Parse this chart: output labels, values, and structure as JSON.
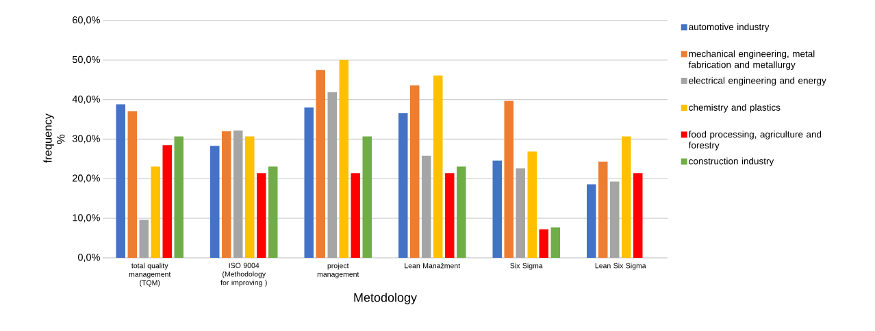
{
  "chart_data": {
    "type": "bar",
    "xlabel": "Metodology",
    "ylabel": "frequency %",
    "categories": [
      "total quality management (TQM)",
      "ISO 9004 (Methodology for improving )",
      "project management",
      "Lean Manažment",
      "Six Sigma",
      "Lean Six Sigma"
    ],
    "series": [
      {
        "name": "automotive industry",
        "color": "#4472c4",
        "values": [
          38.8,
          28.3,
          38.0,
          36.6,
          24.6,
          18.6
        ]
      },
      {
        "name": "mechanical engineering, metal fabrication and metallurgy",
        "color": "#ed7d31",
        "values": [
          37.1,
          32.0,
          47.5,
          43.6,
          39.7,
          24.3
        ]
      },
      {
        "name": "electrical engineering and energy",
        "color": "#a5a5a5",
        "values": [
          9.6,
          32.2,
          41.9,
          25.8,
          22.6,
          19.3
        ]
      },
      {
        "name": "chemistry and plastics",
        "color": "#ffc000",
        "values": [
          23.1,
          30.7,
          50.0,
          46.1,
          26.9,
          30.7
        ]
      },
      {
        "name": "food processing, agriculture and forestry",
        "color": "#ff0000",
        "values": [
          28.5,
          21.4,
          21.4,
          21.4,
          7.2,
          21.4
        ]
      },
      {
        "name": "construction industry",
        "color": "#70ad47",
        "values": [
          30.7,
          23.1,
          30.7,
          23.1,
          7.7,
          null
        ]
      }
    ],
    "ylim": [
      0,
      60
    ],
    "yticks": [
      {
        "value": 0,
        "label": "0,0%"
      },
      {
        "value": 10,
        "label": "10,0%"
      },
      {
        "value": 20,
        "label": "20,0%"
      },
      {
        "value": 30,
        "label": "30,0%"
      },
      {
        "value": 40,
        "label": "40,0%"
      },
      {
        "value": 50,
        "label": "50,0%"
      },
      {
        "value": 60,
        "label": "60,0%"
      }
    ],
    "grid": "y",
    "legend": "right"
  }
}
